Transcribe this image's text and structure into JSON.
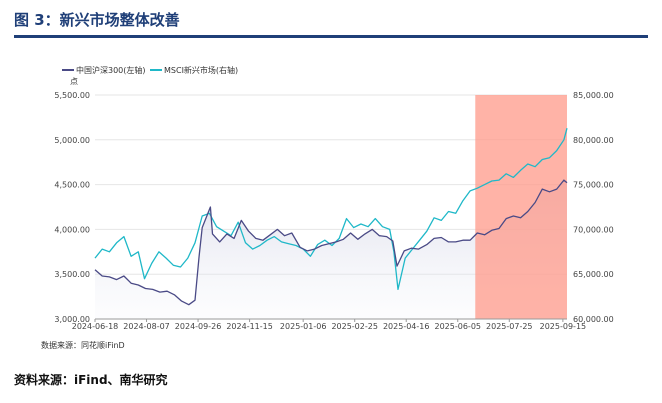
{
  "header": {
    "title": "图 3：新兴市场整体改善"
  },
  "source_inner": "数据来源：同花顺iFinD",
  "source_outer": "资料来源：iFind、南华研究",
  "colors": {
    "title": "#1f3f78",
    "csi300": "#4a4a86",
    "msci": "#1fb8c8",
    "highlight": "#ff9a8a"
  },
  "chart_data": {
    "type": "line",
    "legend_position": "top-left",
    "unit_label": "点",
    "y_left_lim": [
      3000,
      5500
    ],
    "y_right_lim": [
      60000,
      85000
    ],
    "y_left_ticks": [
      "5,500.00",
      "5,000.00",
      "4,500.00",
      "4,000.00",
      "3,500.00",
      "3,000.00"
    ],
    "y_right_ticks": [
      "85,000.00",
      "80,000.00",
      "75,000.00",
      "70,000.00",
      "65,000.00",
      "60,000.00"
    ],
    "x_ticks": [
      "2024-06-18",
      "2024-08-07",
      "2024-09-26",
      "2024-11-15",
      "2025-01-06",
      "2025-02-25",
      "2025-04-16",
      "2025-06-05",
      "2025-07-25",
      "2025-09-15"
    ],
    "x_range": [
      "2024-06-18",
      "2025-09-19"
    ],
    "highlight_range": [
      "2025-06-22",
      "2025-09-19"
    ],
    "series": [
      {
        "name": "中国沪深300(左轴)",
        "axis": "left",
        "points": [
          [
            "2024-06-18",
            3550
          ],
          [
            "2024-06-25",
            3480
          ],
          [
            "2024-07-02",
            3470
          ],
          [
            "2024-07-09",
            3440
          ],
          [
            "2024-07-16",
            3480
          ],
          [
            "2024-07-23",
            3400
          ],
          [
            "2024-07-30",
            3380
          ],
          [
            "2024-08-06",
            3340
          ],
          [
            "2024-08-13",
            3330
          ],
          [
            "2024-08-20",
            3300
          ],
          [
            "2024-08-27",
            3310
          ],
          [
            "2024-09-03",
            3270
          ],
          [
            "2024-09-10",
            3200
          ],
          [
            "2024-09-17",
            3160
          ],
          [
            "2024-09-23",
            3210
          ],
          [
            "2024-09-25",
            3450
          ],
          [
            "2024-09-27",
            3700
          ],
          [
            "2024-09-30",
            4020
          ],
          [
            "2024-10-08",
            4250
          ],
          [
            "2024-10-10",
            3950
          ],
          [
            "2024-10-17",
            3860
          ],
          [
            "2024-10-24",
            3950
          ],
          [
            "2024-10-31",
            3900
          ],
          [
            "2024-11-07",
            4100
          ],
          [
            "2024-11-14",
            3980
          ],
          [
            "2024-11-21",
            3900
          ],
          [
            "2024-11-28",
            3880
          ],
          [
            "2024-12-05",
            3940
          ],
          [
            "2024-12-12",
            4000
          ],
          [
            "2024-12-19",
            3930
          ],
          [
            "2024-12-26",
            3960
          ],
          [
            "2025-01-03",
            3800
          ],
          [
            "2025-01-10",
            3760
          ],
          [
            "2025-01-17",
            3780
          ],
          [
            "2025-01-24",
            3820
          ],
          [
            "2025-02-07",
            3860
          ],
          [
            "2025-02-14",
            3890
          ],
          [
            "2025-02-21",
            3960
          ],
          [
            "2025-02-28",
            3890
          ],
          [
            "2025-03-07",
            3950
          ],
          [
            "2025-03-14",
            4000
          ],
          [
            "2025-03-21",
            3930
          ],
          [
            "2025-03-28",
            3920
          ],
          [
            "2025-04-03",
            3870
          ],
          [
            "2025-04-07",
            3590
          ],
          [
            "2025-04-14",
            3760
          ],
          [
            "2025-04-21",
            3790
          ],
          [
            "2025-04-28",
            3780
          ],
          [
            "2025-05-06",
            3830
          ],
          [
            "2025-05-13",
            3900
          ],
          [
            "2025-05-20",
            3910
          ],
          [
            "2025-05-27",
            3860
          ],
          [
            "2025-06-03",
            3860
          ],
          [
            "2025-06-10",
            3880
          ],
          [
            "2025-06-17",
            3880
          ],
          [
            "2025-06-24",
            3960
          ],
          [
            "2025-07-01",
            3940
          ],
          [
            "2025-07-08",
            3990
          ],
          [
            "2025-07-15",
            4010
          ],
          [
            "2025-07-22",
            4120
          ],
          [
            "2025-07-29",
            4150
          ],
          [
            "2025-08-05",
            4130
          ],
          [
            "2025-08-12",
            4200
          ],
          [
            "2025-08-19",
            4300
          ],
          [
            "2025-08-26",
            4450
          ],
          [
            "2025-09-02",
            4420
          ],
          [
            "2025-09-09",
            4450
          ],
          [
            "2025-09-16",
            4550
          ],
          [
            "2025-09-19",
            4520
          ]
        ]
      },
      {
        "name": "MSCI新兴市场(右轴)",
        "axis": "right",
        "points": [
          [
            "2024-06-18",
            66800
          ],
          [
            "2024-06-25",
            67800
          ],
          [
            "2024-07-02",
            67500
          ],
          [
            "2024-07-09",
            68500
          ],
          [
            "2024-07-16",
            69200
          ],
          [
            "2024-07-23",
            67000
          ],
          [
            "2024-07-30",
            67500
          ],
          [
            "2024-08-05",
            64500
          ],
          [
            "2024-08-12",
            66200
          ],
          [
            "2024-08-19",
            67500
          ],
          [
            "2024-08-26",
            66800
          ],
          [
            "2024-09-02",
            66000
          ],
          [
            "2024-09-09",
            65800
          ],
          [
            "2024-09-16",
            66800
          ],
          [
            "2024-09-23",
            68500
          ],
          [
            "2024-09-30",
            71500
          ],
          [
            "2024-10-07",
            71800
          ],
          [
            "2024-10-14",
            70300
          ],
          [
            "2024-10-21",
            69800
          ],
          [
            "2024-10-28",
            69300
          ],
          [
            "2024-11-04",
            70800
          ],
          [
            "2024-11-11",
            68500
          ],
          [
            "2024-11-18",
            67800
          ],
          [
            "2024-11-25",
            68200
          ],
          [
            "2024-12-02",
            68800
          ],
          [
            "2024-12-09",
            69200
          ],
          [
            "2024-12-16",
            68600
          ],
          [
            "2024-12-23",
            68400
          ],
          [
            "2024-12-30",
            68200
          ],
          [
            "2025-01-06",
            67800
          ],
          [
            "2025-01-13",
            67000
          ],
          [
            "2025-01-20",
            68300
          ],
          [
            "2025-01-27",
            68800
          ],
          [
            "2025-02-03",
            68200
          ],
          [
            "2025-02-10",
            69000
          ],
          [
            "2025-02-17",
            71200
          ],
          [
            "2025-02-24",
            70200
          ],
          [
            "2025-03-03",
            70600
          ],
          [
            "2025-03-10",
            70300
          ],
          [
            "2025-03-17",
            71200
          ],
          [
            "2025-03-24",
            70300
          ],
          [
            "2025-03-31",
            70000
          ],
          [
            "2025-04-04",
            67500
          ],
          [
            "2025-04-08",
            63300
          ],
          [
            "2025-04-15",
            66800
          ],
          [
            "2025-04-22",
            67800
          ],
          [
            "2025-04-29",
            68800
          ],
          [
            "2025-05-06",
            69800
          ],
          [
            "2025-05-13",
            71300
          ],
          [
            "2025-05-20",
            71000
          ],
          [
            "2025-05-27",
            72000
          ],
          [
            "2025-06-03",
            71800
          ],
          [
            "2025-06-10",
            73200
          ],
          [
            "2025-06-17",
            74300
          ],
          [
            "2025-06-24",
            74600
          ],
          [
            "2025-07-01",
            75000
          ],
          [
            "2025-07-08",
            75400
          ],
          [
            "2025-07-15",
            75500
          ],
          [
            "2025-07-22",
            76200
          ],
          [
            "2025-07-29",
            75800
          ],
          [
            "2025-08-05",
            76600
          ],
          [
            "2025-08-12",
            77300
          ],
          [
            "2025-08-19",
            77000
          ],
          [
            "2025-08-26",
            77800
          ],
          [
            "2025-09-02",
            78000
          ],
          [
            "2025-09-09",
            78800
          ],
          [
            "2025-09-16",
            80000
          ],
          [
            "2025-09-19",
            81300
          ]
        ]
      }
    ]
  }
}
